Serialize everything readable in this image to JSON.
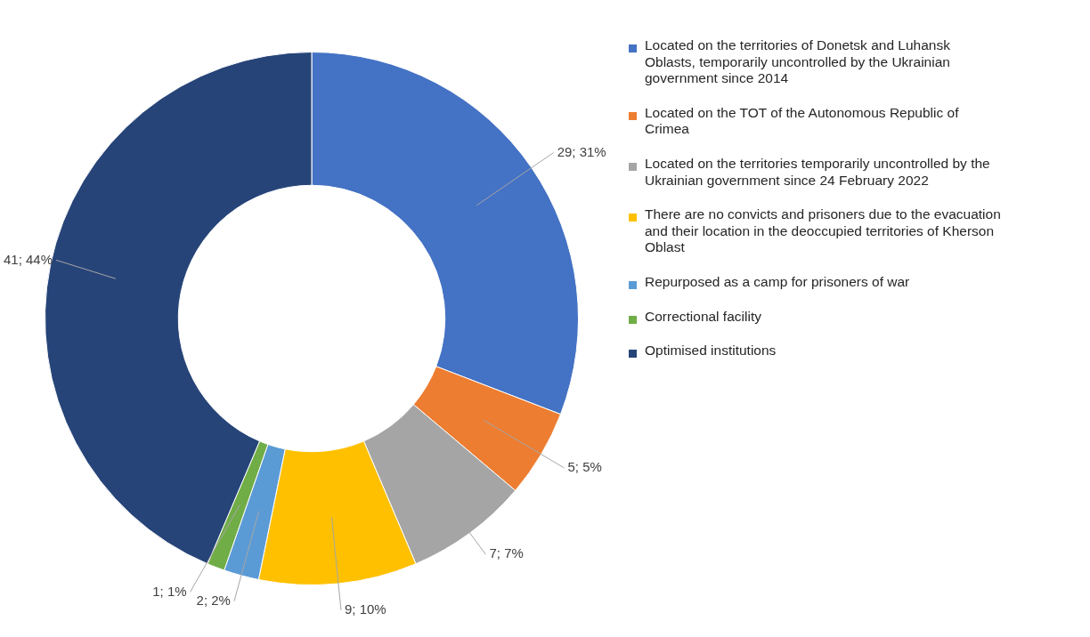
{
  "chart_data": {
    "type": "donut",
    "categories": [
      "Located on the territories of Donetsk and Luhansk Oblasts, temporarily uncontrolled by the Ukrainian government since 2014",
      "Located on the TOT of the Autonomous Republic of Crimea",
      "Located on the territories temporarily uncontrolled by the Ukrainian government since 24 February 2022",
      "There are no convicts and prisoners due to the evacuation and their location in the deoccupied territories of Kherson Oblast",
      "Repurposed as a camp for prisoners of war",
      "Correctional facility",
      "Optimised institutions"
    ],
    "values": [
      29,
      5,
      7,
      9,
      2,
      1,
      41
    ],
    "colors": [
      "#4472c4",
      "#ed7d31",
      "#a5a5a5",
      "#ffc000",
      "#5b9bd5",
      "#70ad47",
      "#264478"
    ],
    "value_labels": [
      "29; 31%",
      "5; 5%",
      "7; 7%",
      "9; 10%",
      "2; 2%",
      "1; 1%",
      "41; 44%"
    ],
    "legend": "right"
  }
}
